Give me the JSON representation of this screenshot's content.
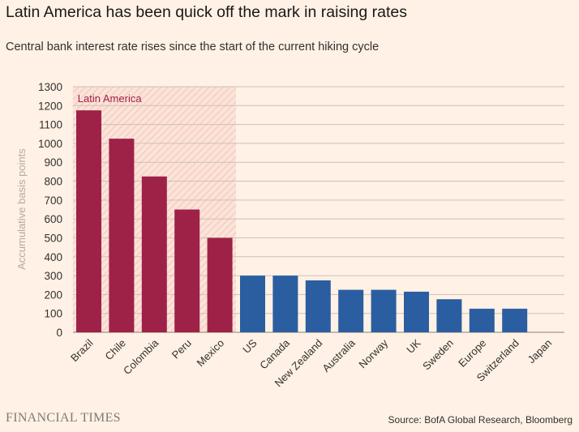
{
  "header": {
    "title": "Latin America has been quick off the mark in raising rates",
    "subtitle": "Central bank interest rate rises since the start of the current hiking cycle"
  },
  "footer": {
    "brand": "FINANCIAL TIMES",
    "source": "Source: BofA Global Research, Bloomberg"
  },
  "colors": {
    "background": "#fff1e5",
    "latam_bar": "#9e2148",
    "other_bar": "#2a5ea0",
    "gridline": "#ccc1b7",
    "highlight_hatch": "#f2c4be"
  },
  "chart_data": {
    "type": "bar",
    "title": "Latin America has been quick off the mark in raising rates",
    "subtitle": "Central bank interest rate rises since the start of the current hiking cycle",
    "xlabel": "",
    "ylabel": "Accumulative basis points",
    "ylim": [
      0,
      1300
    ],
    "yticks": [
      0,
      100,
      200,
      300,
      400,
      500,
      600,
      700,
      800,
      900,
      1000,
      1100,
      1200,
      1300
    ],
    "grid": true,
    "categories": [
      "Brazil",
      "Chile",
      "Colombia",
      "Peru",
      "Mexico",
      "US",
      "Canada",
      "New Zealand",
      "Australia",
      "Norway",
      "UK",
      "Sweden",
      "Europe",
      "Switzerland",
      "Japan"
    ],
    "values": [
      1175,
      1025,
      825,
      650,
      500,
      300,
      300,
      275,
      225,
      225,
      215,
      175,
      125,
      125,
      0
    ],
    "groups": [
      "latam",
      "latam",
      "latam",
      "latam",
      "latam",
      "other",
      "other",
      "other",
      "other",
      "other",
      "other",
      "other",
      "other",
      "other",
      "other"
    ],
    "highlight": {
      "label": "Latin America",
      "categories": [
        "Brazil",
        "Chile",
        "Colombia",
        "Peru",
        "Mexico"
      ]
    }
  }
}
